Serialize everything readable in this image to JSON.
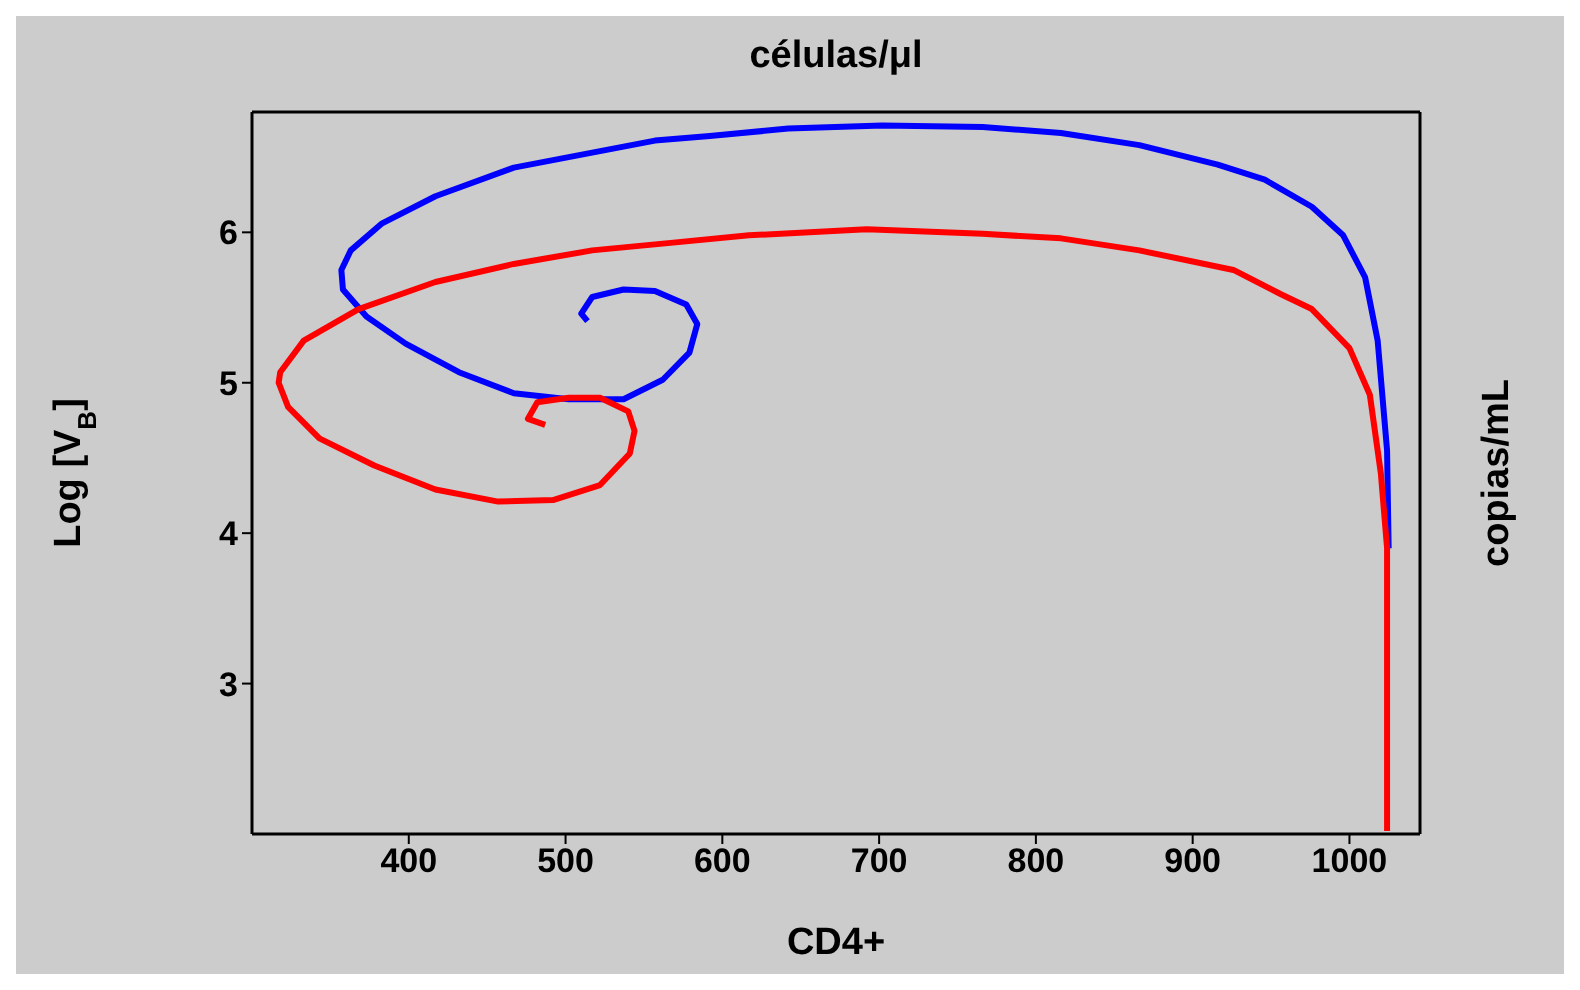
{
  "chart_data": {
    "type": "line",
    "x2label": "células/μl",
    "xlabel": "CD4+",
    "ylabel": "Log [V$_{B}$]",
    "y2label": "copias/mL",
    "xlim": [
      300,
      1045
    ],
    "xticks": [
      400,
      500,
      600,
      700,
      800,
      900,
      1000
    ],
    "ylim": [
      2.0,
      6.8
    ],
    "yticks": [
      3,
      4,
      5,
      6
    ],
    "marker": "none",
    "line_style": "solid",
    "series": [
      {
        "color": "#0000ff",
        "x": [
          1025,
          1024,
          1018,
          1010,
          996,
          976,
          946,
          916,
          866,
          816,
          766,
          702,
          642,
          592,
          557,
          517,
          467,
          417,
          383,
          363,
          357,
          358,
          373,
          398,
          432,
          467,
          502,
          537,
          562,
          579,
          584,
          577,
          557,
          537,
          517,
          510,
          514
        ],
        "values": [
          3.9,
          4.55,
          5.28,
          5.7,
          5.98,
          6.17,
          6.35,
          6.45,
          6.58,
          6.66,
          6.7,
          6.71,
          6.69,
          6.64,
          6.61,
          6.53,
          6.43,
          6.24,
          6.06,
          5.88,
          5.75,
          5.62,
          5.44,
          5.26,
          5.07,
          4.93,
          4.89,
          4.89,
          5.02,
          5.2,
          5.39,
          5.52,
          5.61,
          5.62,
          5.57,
          5.46,
          5.41
        ]
      },
      {
        "color": "#ff0000",
        "x": [
          1024,
          1024,
          1020,
          1013,
          1000,
          976,
          956,
          926,
          866,
          816,
          766,
          692,
          617,
          567,
          517,
          467,
          417,
          368,
          333,
          318,
          317,
          323,
          343,
          378,
          417,
          457,
          492,
          522,
          541,
          544,
          540,
          522,
          502,
          482,
          476,
          487
        ],
        "values": [
          2.02,
          3.9,
          4.4,
          4.92,
          5.23,
          5.49,
          5.59,
          5.75,
          5.88,
          5.96,
          5.99,
          6.02,
          5.98,
          5.93,
          5.88,
          5.79,
          5.67,
          5.49,
          5.28,
          5.07,
          5.0,
          4.84,
          4.63,
          4.45,
          4.29,
          4.21,
          4.22,
          4.32,
          4.53,
          4.68,
          4.81,
          4.9,
          4.9,
          4.87,
          4.76,
          4.72
        ]
      }
    ]
  }
}
